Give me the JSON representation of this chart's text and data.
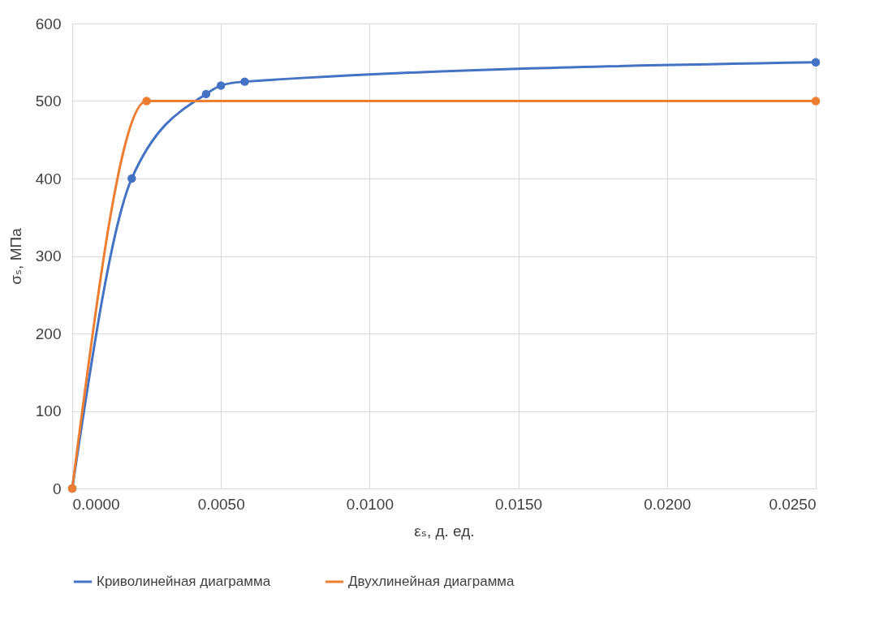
{
  "chart_data": {
    "type": "line",
    "xlabel": "εₛ, д. ед.",
    "ylabel": "σₛ, МПа",
    "series": [
      {
        "name": "Криволинейная диаграмма",
        "color": "#4472c4",
        "x": [
          0,
          0.002,
          0.0045,
          0.005,
          0.0058,
          0.025
        ],
        "values": [
          0,
          400,
          509,
          520,
          525,
          550
        ]
      },
      {
        "name": "Двухлинейная диаграмма",
        "color": "#ed7d31",
        "x": [
          0,
          0.0025,
          0.025
        ],
        "values": [
          0,
          500,
          500
        ]
      }
    ],
    "xlim": [
      0,
      0.025
    ],
    "xticks": [
      {
        "value": 0,
        "label": "0.0000"
      },
      {
        "value": 0.005,
        "label": "0.0050"
      },
      {
        "value": 0.01,
        "label": "0.0100"
      },
      {
        "value": 0.015,
        "label": "0.0150"
      },
      {
        "value": 0.02,
        "label": "0.0200"
      },
      {
        "value": 0.025,
        "label": "0.0250"
      }
    ],
    "ylim": [
      0,
      600
    ],
    "yticks": [
      0,
      100,
      200,
      300,
      400,
      500,
      600
    ],
    "grid": true,
    "legend": "bottom",
    "marker": "circle",
    "line_style": "solid"
  }
}
